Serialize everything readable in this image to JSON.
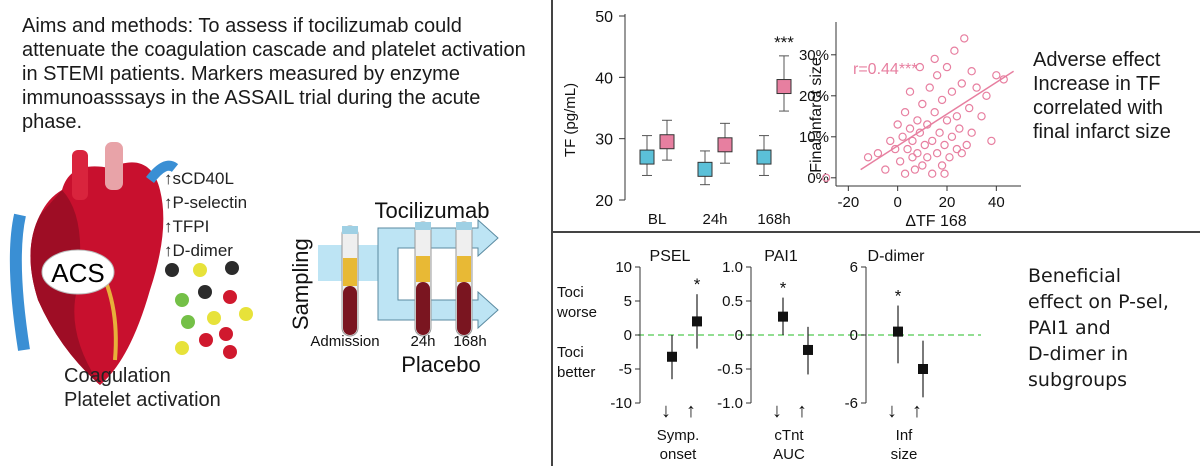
{
  "left": {
    "aims_text": "Aims and methods: To assess if tocilizumab could attenuate the coagulation cascade and platelet activation in STEMI patients. Markers measured by enzyme immunoasssays in the ASSAIL trial during the acute phase.",
    "markers": [
      "↑sCD40L",
      "↑P-selectin",
      "↑TFPI",
      "↑D-dimer"
    ],
    "heart_label": "ACS",
    "bottom_caption": [
      "Coagulation",
      "Platelet activation"
    ],
    "sampling_label": "Sampling",
    "tocilizumab_label": "Tocilizumab",
    "placebo_label": "Placebo",
    "timepoints": [
      "Admission",
      "24h",
      "168h"
    ]
  },
  "top_right": {
    "side_text": [
      "Adverse effect",
      "Increase in TF",
      "correlated with",
      "final infarct size"
    ],
    "chart_tf": {
      "type": "scatter",
      "ylabel": "TF (pg/mL)",
      "ylim": [
        20,
        50
      ],
      "yticks": [
        "20",
        "30",
        "40",
        "50"
      ],
      "categories": [
        "BL",
        "24h",
        "168h"
      ],
      "series": [
        {
          "color": "#5bc0d8",
          "means": [
            27,
            25,
            27
          ],
          "lower": [
            24,
            22.5,
            24
          ],
          "upper": [
            30.5,
            28,
            30.5
          ]
        },
        {
          "color": "#e77fa0",
          "means": [
            29.5,
            29,
            38.5
          ],
          "lower": [
            26.5,
            26,
            34.5
          ],
          "upper": [
            33,
            32.5,
            43.5
          ]
        }
      ],
      "significance": [
        {
          "category": "168h",
          "label": "***"
        }
      ]
    },
    "chart_scatter": {
      "type": "scatter",
      "xlabel": "ΔTF 168",
      "ylabel": "Final infarct size",
      "xlim": [
        -25,
        50
      ],
      "ylim": [
        -2,
        38
      ],
      "xticks": [
        "-20",
        "0",
        "20",
        "40"
      ],
      "yticks": [
        "0%",
        "10%",
        "20%",
        "30%"
      ],
      "annotation": "r=0.44***",
      "color": "#e77fa0",
      "fit_line": {
        "x": [
          -15,
          47
        ],
        "y": [
          2,
          26
        ]
      },
      "points": [
        [
          -29,
          0
        ],
        [
          -12,
          5
        ],
        [
          -8,
          6
        ],
        [
          -5,
          2
        ],
        [
          -3,
          9
        ],
        [
          -1,
          7
        ],
        [
          0,
          13
        ],
        [
          1,
          4
        ],
        [
          2,
          10
        ],
        [
          3,
          1
        ],
        [
          4,
          7
        ],
        [
          5,
          12
        ],
        [
          6,
          5
        ],
        [
          6,
          9
        ],
        [
          7,
          2
        ],
        [
          8,
          14
        ],
        [
          8,
          6
        ],
        [
          9,
          11
        ],
        [
          10,
          3
        ],
        [
          10,
          18
        ],
        [
          11,
          8
        ],
        [
          12,
          5
        ],
        [
          12,
          13
        ],
        [
          13,
          22
        ],
        [
          14,
          1
        ],
        [
          14,
          9
        ],
        [
          15,
          16
        ],
        [
          16,
          6
        ],
        [
          16,
          25
        ],
        [
          17,
          11
        ],
        [
          18,
          3
        ],
        [
          18,
          19
        ],
        [
          19,
          8
        ],
        [
          20,
          27
        ],
        [
          20,
          14
        ],
        [
          21,
          5
        ],
        [
          22,
          10
        ],
        [
          22,
          21
        ],
        [
          23,
          31
        ],
        [
          24,
          7
        ],
        [
          24,
          15
        ],
        [
          25,
          12
        ],
        [
          26,
          23
        ],
        [
          27,
          34
        ],
        [
          28,
          8
        ],
        [
          29,
          17
        ],
        [
          30,
          11
        ],
        [
          30,
          26
        ],
        [
          32,
          22
        ],
        [
          34,
          15
        ],
        [
          36,
          20
        ],
        [
          38,
          9
        ],
        [
          40,
          25
        ],
        [
          43,
          24
        ],
        [
          5,
          21
        ],
        [
          3,
          16
        ],
        [
          9,
          27
        ],
        [
          15,
          29
        ],
        [
          26,
          6
        ],
        [
          19,
          1
        ]
      ]
    }
  },
  "bottom_right": {
    "side_text": [
      "Beneficial",
      "effect on P-sel,",
      "PAI1 and",
      "D-dimer in",
      "subgroups"
    ],
    "toci_worse": [
      "Toci",
      "worse"
    ],
    "toci_better": [
      "Toci",
      "better"
    ],
    "arrows": [
      "↓",
      "↑"
    ],
    "panels": [
      {
        "title": "PSEL",
        "ylim": [
          -10,
          10
        ],
        "yticks": [
          "-10",
          "-5",
          "0",
          "5",
          "10"
        ],
        "xlabel": [
          "Symp.",
          "onset"
        ],
        "values": [
          -3.2,
          2
        ],
        "lower": [
          -6.5,
          -2
        ],
        "upper": [
          0,
          6
        ],
        "star": "*"
      },
      {
        "title": "PAI1",
        "ylim": [
          -1,
          1
        ],
        "yticks": [
          "-1.0",
          "-0.5",
          "0",
          "0.5",
          "1.0"
        ],
        "xlabel": [
          "cTnt",
          "AUC"
        ],
        "values": [
          0.27,
          -0.22
        ],
        "lower": [
          0,
          -0.58
        ],
        "upper": [
          0.55,
          0.12
        ],
        "star": "*"
      },
      {
        "title": "D-dimer",
        "ylim": [
          -6,
          6
        ],
        "yticks": [
          "-6",
          "0",
          "6"
        ],
        "xlabel": [
          "Inf",
          "size"
        ],
        "values": [
          0.3,
          -3
        ],
        "lower": [
          -2.5,
          -5.5
        ],
        "upper": [
          2.6,
          -0.5
        ],
        "star": "*"
      }
    ]
  }
}
